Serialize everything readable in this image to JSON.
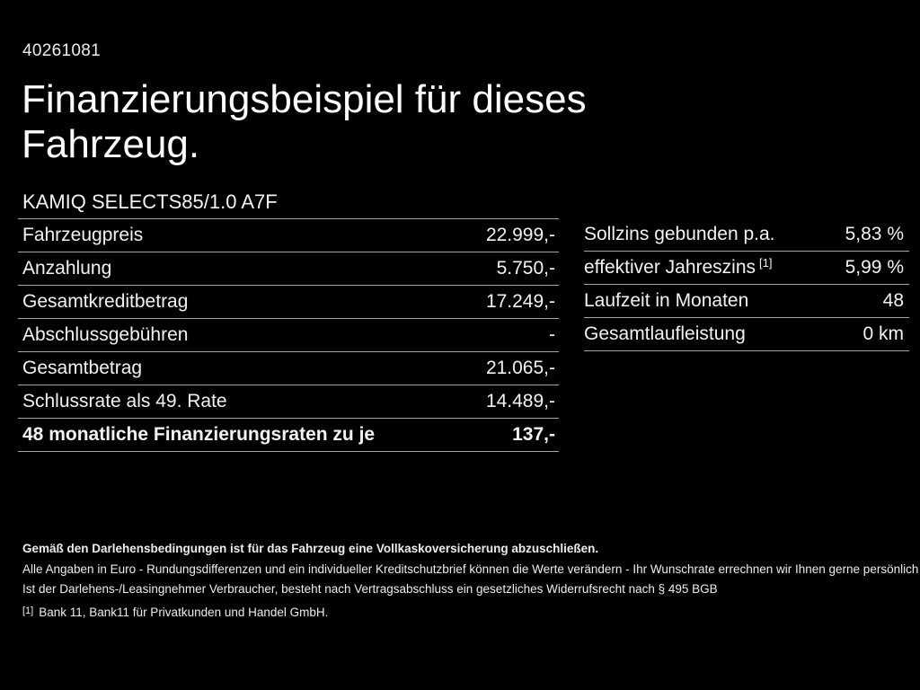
{
  "colors": {
    "background": "#000000",
    "text": "#f2f2f2",
    "divider": "#a6a6a6"
  },
  "header": {
    "doc_id": "40261081",
    "title_line1": "Finanzierungsbeispiel für dieses",
    "title_line2": "Fahrzeug.",
    "vehicle_model": "KAMIQ SELECTS85/1.0 A7F"
  },
  "finance_table": {
    "rows": [
      {
        "label": "Fahrzeugpreis",
        "value": "22.999,-"
      },
      {
        "label": "Anzahlung",
        "value": "5.750,-"
      },
      {
        "label": "Gesamtkreditbetrag",
        "value": "17.249,-"
      },
      {
        "label": "Abschlussgebühren",
        "value": "-"
      },
      {
        "label": "Gesamtbetrag",
        "value": "21.065,-"
      },
      {
        "label": "Schlussrate als 49. Rate",
        "value": "14.489,-"
      },
      {
        "label": "48 monatliche Finanzierungsraten zu je",
        "value": "137,-"
      }
    ]
  },
  "conditions_table": {
    "rows": [
      {
        "label": "Sollzins gebunden p.a.",
        "value": "5,83 %"
      },
      {
        "label": "effektiver Jahreszins",
        "sup_marker": "[1]",
        "value": "5,99 %"
      },
      {
        "label": "Laufzeit in Monaten",
        "value": "48"
      },
      {
        "label": "Gesamtlaufleistung",
        "value": "0 km"
      }
    ]
  },
  "footer": {
    "line1": "Gemäß den Darlehensbedingungen ist für das Fahrzeug eine Vollkaskoversicherung abzuschließen.",
    "line2": "Alle Angaben in Euro - Rundungsdifferenzen und ein individueller Kreditschutzbrief können die Werte verändern - Ihr Wunschrate errechnen wir Ihnen gerne persönlich",
    "line3": "Ist der Darlehens-/Leasingnehmer Verbraucher, besteht nach Vertragsabschluss ein gesetzliches Widerrufsrecht nach § 495 BGB",
    "footnote_marker": "[1]",
    "footnote_text": "Bank 11, Bank11 für Privatkunden und Handel GmbH."
  }
}
